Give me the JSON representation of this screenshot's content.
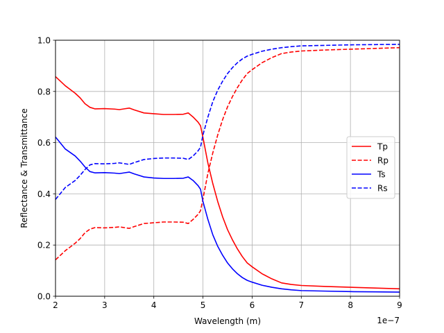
{
  "chart_data": {
    "type": "line",
    "xlabel": "Wavelength (m)",
    "ylabel": "Reflectance & Transmittance",
    "x_offset_label": "1e−7",
    "xlim": [
      2,
      9
    ],
    "ylim": [
      0.0,
      1.0
    ],
    "x_ticks": [
      2,
      3,
      4,
      5,
      6,
      7,
      8,
      9
    ],
    "x_tick_labels": [
      "2",
      "3",
      "4",
      "5",
      "6",
      "7",
      "8",
      "9"
    ],
    "y_ticks": [
      0.0,
      0.2,
      0.4,
      0.6,
      0.8,
      1.0
    ],
    "y_tick_labels": [
      "0.0",
      "0.2",
      "0.4",
      "0.6",
      "0.8",
      "1.0"
    ],
    "grid": true,
    "legend_position": "center-right",
    "x": [
      2.0,
      2.2,
      2.4,
      2.5,
      2.6,
      2.7,
      2.8,
      3.0,
      3.2,
      3.3,
      3.4,
      3.5,
      3.6,
      3.8,
      4.0,
      4.2,
      4.4,
      4.6,
      4.7,
      4.8,
      4.9,
      4.95,
      5.0,
      5.1,
      5.2,
      5.3,
      5.4,
      5.5,
      5.6,
      5.7,
      5.8,
      5.9,
      6.0,
      6.2,
      6.4,
      6.6,
      6.8,
      7.0,
      7.5,
      8.0,
      8.5,
      9.0
    ],
    "series": [
      {
        "name": "Tp",
        "color": "#ff0000",
        "dash": "solid",
        "values": [
          0.858,
          0.822,
          0.793,
          0.775,
          0.752,
          0.738,
          0.732,
          0.733,
          0.731,
          0.729,
          0.732,
          0.735,
          0.728,
          0.716,
          0.713,
          0.71,
          0.71,
          0.711,
          0.716,
          0.7,
          0.68,
          0.666,
          0.62,
          0.52,
          0.44,
          0.37,
          0.31,
          0.26,
          0.22,
          0.185,
          0.155,
          0.13,
          0.115,
          0.088,
          0.068,
          0.052,
          0.046,
          0.042,
          0.038,
          0.035,
          0.032,
          0.029
        ]
      },
      {
        "name": "Rp",
        "color": "#ff0000",
        "dash": "dashed",
        "values": [
          0.142,
          0.178,
          0.207,
          0.225,
          0.248,
          0.262,
          0.268,
          0.267,
          0.269,
          0.271,
          0.268,
          0.265,
          0.272,
          0.284,
          0.287,
          0.29,
          0.29,
          0.289,
          0.284,
          0.3,
          0.32,
          0.334,
          0.38,
          0.48,
          0.56,
          0.63,
          0.69,
          0.74,
          0.78,
          0.815,
          0.845,
          0.87,
          0.885,
          0.912,
          0.932,
          0.948,
          0.954,
          0.958,
          0.962,
          0.965,
          0.968,
          0.971
        ]
      },
      {
        "name": "Ts",
        "color": "#0000ff",
        "dash": "solid",
        "values": [
          0.622,
          0.575,
          0.548,
          0.528,
          0.505,
          0.487,
          0.482,
          0.483,
          0.481,
          0.479,
          0.482,
          0.485,
          0.478,
          0.466,
          0.462,
          0.46,
          0.46,
          0.461,
          0.466,
          0.452,
          0.432,
          0.418,
          0.37,
          0.3,
          0.24,
          0.195,
          0.16,
          0.13,
          0.107,
          0.088,
          0.073,
          0.062,
          0.055,
          0.043,
          0.035,
          0.029,
          0.025,
          0.022,
          0.02,
          0.018,
          0.017,
          0.016
        ]
      },
      {
        "name": "Rs",
        "color": "#0000ff",
        "dash": "dashed",
        "values": [
          0.378,
          0.425,
          0.452,
          0.472,
          0.495,
          0.513,
          0.518,
          0.517,
          0.519,
          0.521,
          0.518,
          0.515,
          0.522,
          0.534,
          0.538,
          0.54,
          0.54,
          0.539,
          0.534,
          0.548,
          0.568,
          0.582,
          0.63,
          0.7,
          0.76,
          0.805,
          0.84,
          0.87,
          0.893,
          0.912,
          0.927,
          0.938,
          0.945,
          0.957,
          0.965,
          0.971,
          0.975,
          0.978,
          0.98,
          0.982,
          0.983,
          0.984
        ]
      }
    ]
  }
}
